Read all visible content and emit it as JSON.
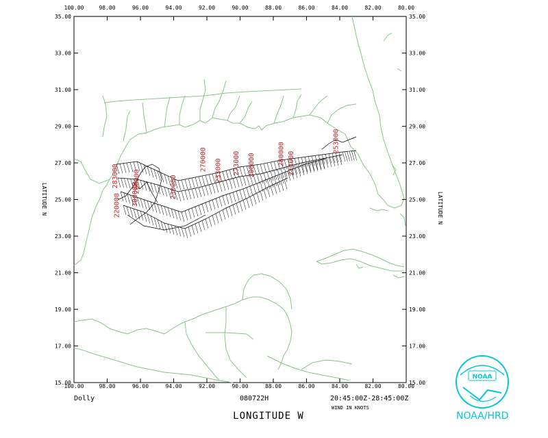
{
  "storm_name": "Dolly",
  "date_code": "080722H",
  "time_range": "20:45:00Z-28:45:00Z",
  "wind_units": "WIND IN KNOTS",
  "xlabel": "LONGITUDE   W",
  "ylabel": "LATITUDE   N",
  "agency": "NOAA/HRD",
  "logo_text": "NOAA",
  "colors": {
    "coast": "#88c488",
    "flight_label": "#c0282a",
    "brand": "#00c8d8",
    "track": "#000000"
  },
  "lon_ticks": [
    "100.00",
    "98.00",
    "96.00",
    "94.00",
    "92.00",
    "90.00",
    "88.00",
    "86.00",
    "84.00",
    "82.00",
    "80.00"
  ],
  "lat_ticks": [
    "35.00",
    "33.00",
    "31.00",
    "29.00",
    "27.00",
    "25.00",
    "23.00",
    "21.00",
    "19.00",
    "17.00",
    "15.00"
  ],
  "map_extent": {
    "lon_min": 100,
    "lon_max": 80,
    "lat_min": 15,
    "lat_max": 35
  },
  "flight_levels": [
    {
      "label": "283000",
      "lon": 97.4,
      "lat": 25.6
    },
    {
      "label": "260000",
      "lon": 96.1,
      "lat": 25.3
    },
    {
      "label": "230000",
      "lon": 93.9,
      "lat": 25.0
    },
    {
      "label": "270000",
      "lon": 92.1,
      "lat": 26.5
    },
    {
      "label": "233000",
      "lon": 91.2,
      "lat": 25.9
    },
    {
      "label": "273000",
      "lon": 90.1,
      "lat": 26.3
    },
    {
      "label": "200000",
      "lon": 89.2,
      "lat": 26.2
    },
    {
      "label": "280000",
      "lon": 87.4,
      "lat": 26.8
    },
    {
      "label": "213000",
      "lon": 86.8,
      "lat": 26.3
    },
    {
      "label": "253000",
      "lon": 84.1,
      "lat": 27.5
    },
    {
      "label": "220000",
      "lon": 97.3,
      "lat": 24.0
    },
    {
      "label": "300000",
      "lon": 96.2,
      "lat": 24.6
    }
  ]
}
